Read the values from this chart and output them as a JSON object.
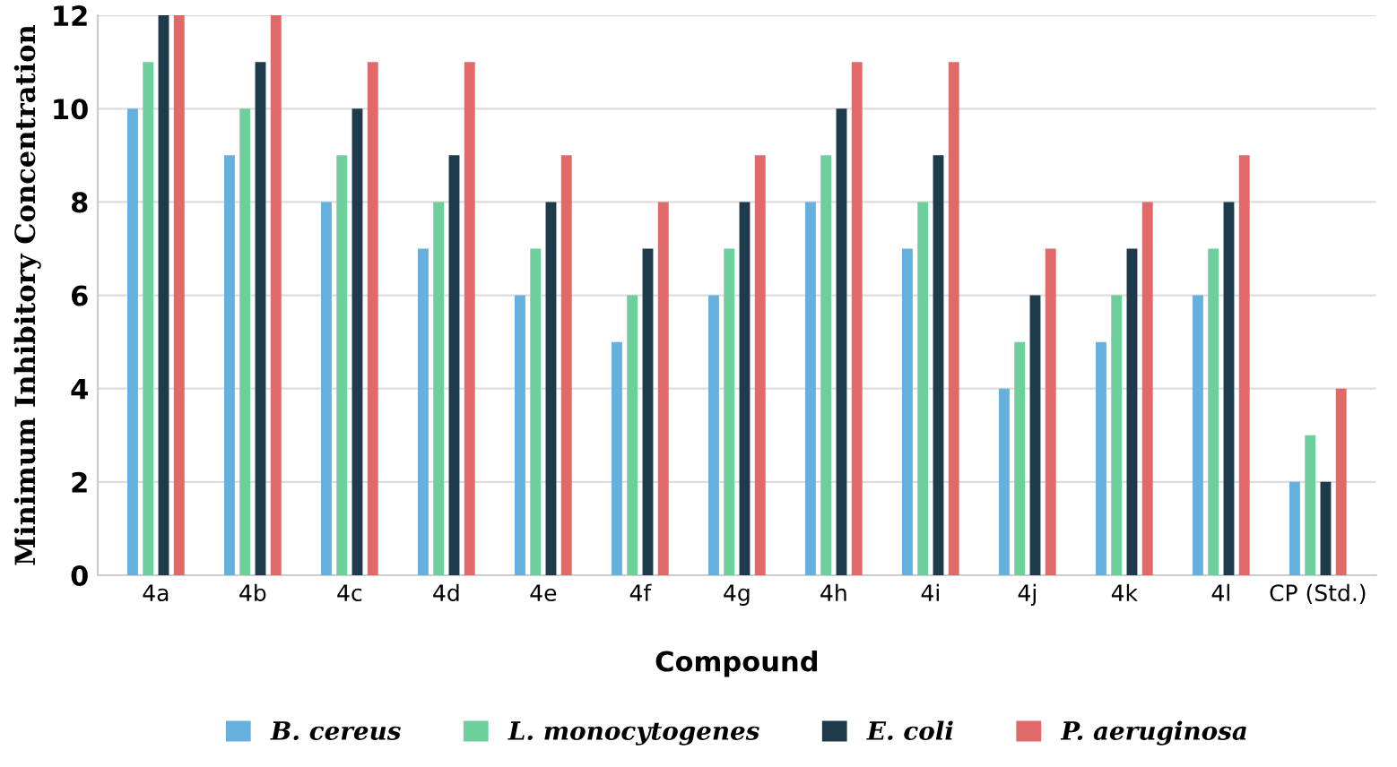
{
  "chart_data": {
    "type": "bar",
    "xlabel": "Compound",
    "ylabel": "Minimum Inhibitory Concentration",
    "categories": [
      "4a",
      "4b",
      "4c",
      "4d",
      "4e",
      "4f",
      "4g",
      "4h",
      "4i",
      "4j",
      "4k",
      "4l",
      "CP (Std.)"
    ],
    "series": [
      {
        "name": "B. cereus",
        "color": "#65b0dc",
        "values": [
          10,
          9,
          8,
          7,
          6,
          5,
          6,
          8,
          7,
          4,
          5,
          6,
          2
        ]
      },
      {
        "name": "L. monocytogenes",
        "color": "#6ccf9c",
        "values": [
          11,
          10,
          9,
          8,
          7,
          6,
          7,
          9,
          8,
          5,
          6,
          7,
          3
        ]
      },
      {
        "name": "E. coli",
        "color": "#1e3b4b",
        "values": [
          12,
          11,
          10,
          9,
          8,
          7,
          8,
          10,
          9,
          6,
          7,
          8,
          2
        ]
      },
      {
        "name": "P. aeruginosa",
        "color": "#e06a6a",
        "values": [
          12,
          12,
          11,
          11,
          9,
          8,
          9,
          11,
          11,
          7,
          8,
          9,
          4
        ]
      }
    ],
    "ylim": [
      0,
      12
    ],
    "yticks": [
      0,
      2,
      4,
      6,
      8,
      10,
      12
    ],
    "grid": "y",
    "legend": "bottom"
  }
}
